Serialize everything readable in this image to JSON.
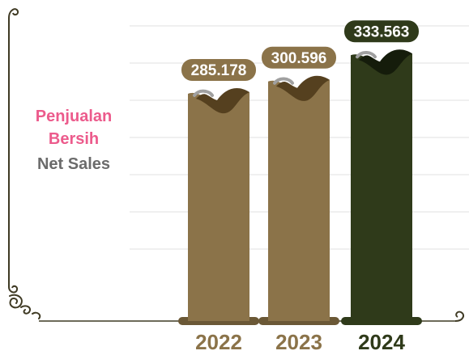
{
  "chart_data": {
    "type": "bar",
    "title_id": "Penjualan Bersih",
    "title_en": "Net Sales",
    "categories": [
      "2022",
      "2023",
      "2024"
    ],
    "values": [
      285.178,
      300.596,
      333.563
    ],
    "value_labels": [
      "285.178",
      "300.596",
      "333.563"
    ],
    "xlabel": "",
    "ylabel": "",
    "ylim": [
      0,
      340
    ],
    "grid": true,
    "legend": "none",
    "colors": {
      "bar_regular": "#8b7349",
      "bar_highlight": "#2f3a1a",
      "bar_shadow": "#55401f",
      "highlight_shadow": "#151c0b",
      "badge_regular": "#8b7349",
      "badge_highlight": "#2f3a1a",
      "year_regular": "#8b7349",
      "year_highlight": "#2f3a1a",
      "frame_line": "#3f3a24"
    }
  }
}
